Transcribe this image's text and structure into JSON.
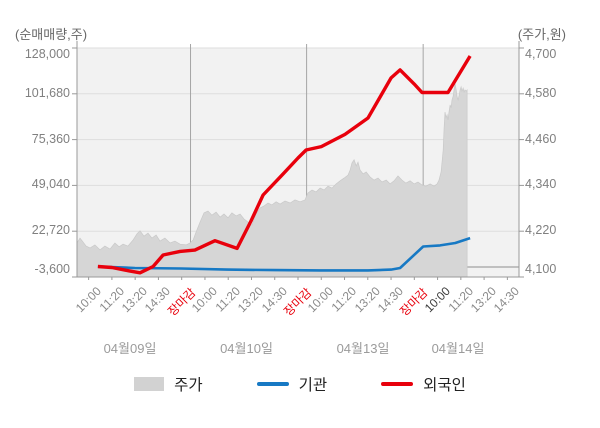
{
  "axes": {
    "left_title": "(순매매량,주)",
    "right_title": "(주가,원)",
    "left_ticks": [
      "128,000",
      "101,680",
      "75,360",
      "49,040",
      "22,720",
      "-3,600"
    ],
    "right_ticks": [
      "4,700",
      "4,580",
      "4,460",
      "4,340",
      "4,220",
      "4,100"
    ]
  },
  "x_axis": {
    "time_labels": [
      {
        "text": "10:00",
        "style": "normal"
      },
      {
        "text": "11:20",
        "style": "normal"
      },
      {
        "text": "13:20",
        "style": "normal"
      },
      {
        "text": "14:30",
        "style": "normal"
      },
      {
        "text": "장마감",
        "style": "close"
      },
      {
        "text": "10:00",
        "style": "normal"
      },
      {
        "text": "11:20",
        "style": "normal"
      },
      {
        "text": "13:20",
        "style": "normal"
      },
      {
        "text": "14:30",
        "style": "normal"
      },
      {
        "text": "장마감",
        "style": "close"
      },
      {
        "text": "10:00",
        "style": "normal"
      },
      {
        "text": "11:20",
        "style": "normal"
      },
      {
        "text": "13:20",
        "style": "normal"
      },
      {
        "text": "14:30",
        "style": "normal"
      },
      {
        "text": "장마감",
        "style": "close"
      },
      {
        "text": "10:00",
        "style": "current"
      },
      {
        "text": "11:20",
        "style": "normal"
      },
      {
        "text": "13:20",
        "style": "normal"
      },
      {
        "text": "14:30",
        "style": "normal"
      }
    ],
    "date_labels": [
      "04월09일",
      "04월10일",
      "04월13일",
      "04월14일"
    ]
  },
  "legend": [
    {
      "label": "주가",
      "type": "area",
      "color": "#d2d2d2"
    },
    {
      "label": "기관",
      "type": "line",
      "color": "#1779c4"
    },
    {
      "label": "외국인",
      "type": "line",
      "color": "#e8000c"
    }
  ],
  "chart_data": {
    "type": "area",
    "title": "",
    "x_unit": "session position in 40-min slots (0-19); ticks at i+0.5; days span [0-5],[5-10],[10-15],[15-19]",
    "left_axis": {
      "label": "순매매량(주)",
      "tick_values": [
        128000,
        101680,
        75360,
        49040,
        22720,
        -3600
      ],
      "zero_line": 0
    },
    "right_axis": {
      "label": "주가(원)",
      "min": 4100,
      "max": 4700,
      "tick_step": 120
    },
    "grid": true,
    "legend_position": "bottom",
    "day_boundaries_pos": [
      4.88,
      9.87,
      14.88
    ],
    "series": [
      {
        "name": "주가",
        "type": "area",
        "axis": "right",
        "unit": "원",
        "color": "#d6d6d6",
        "points": [
          [
            0,
            4189
          ],
          [
            0.13,
            4202
          ],
          [
            0.26,
            4192
          ],
          [
            0.39,
            4181
          ],
          [
            0.56,
            4176
          ],
          [
            0.77,
            4184
          ],
          [
            0.99,
            4171
          ],
          [
            1.2,
            4181
          ],
          [
            1.42,
            4173
          ],
          [
            1.63,
            4189
          ],
          [
            1.81,
            4179
          ],
          [
            1.98,
            4186
          ],
          [
            2.19,
            4181
          ],
          [
            2.41,
            4197
          ],
          [
            2.58,
            4213
          ],
          [
            2.71,
            4221
          ],
          [
            2.88,
            4207
          ],
          [
            3.05,
            4215
          ],
          [
            3.22,
            4202
          ],
          [
            3.4,
            4210
          ],
          [
            3.57,
            4194
          ],
          [
            3.78,
            4202
          ],
          [
            4,
            4189
          ],
          [
            4.21,
            4194
          ],
          [
            4.43,
            4186
          ],
          [
            4.69,
            4184
          ],
          [
            4.86,
            4189
          ],
          [
            4.99,
            4197
          ],
          [
            5.12,
            4218
          ],
          [
            5.29,
            4244
          ],
          [
            5.46,
            4268
          ],
          [
            5.63,
            4273
          ],
          [
            5.8,
            4262
          ],
          [
            5.98,
            4270
          ],
          [
            6.15,
            4257
          ],
          [
            6.32,
            4265
          ],
          [
            6.49,
            4255
          ],
          [
            6.66,
            4268
          ],
          [
            6.84,
            4260
          ],
          [
            7.01,
            4265
          ],
          [
            7.18,
            4252
          ],
          [
            7.35,
            4244
          ],
          [
            7.52,
            4236
          ],
          [
            7.7,
            4265
          ],
          [
            7.87,
            4281
          ],
          [
            8.04,
            4286
          ],
          [
            8.21,
            4294
          ],
          [
            8.38,
            4289
          ],
          [
            8.56,
            4297
          ],
          [
            8.73,
            4291
          ],
          [
            8.94,
            4299
          ],
          [
            9.16,
            4294
          ],
          [
            9.37,
            4302
          ],
          [
            9.59,
            4297
          ],
          [
            9.8,
            4302
          ],
          [
            9.93,
            4320
          ],
          [
            10.1,
            4328
          ],
          [
            10.28,
            4323
          ],
          [
            10.45,
            4333
          ],
          [
            10.62,
            4328
          ],
          [
            10.79,
            4338
          ],
          [
            10.96,
            4333
          ],
          [
            11.14,
            4344
          ],
          [
            11.31,
            4352
          ],
          [
            11.48,
            4359
          ],
          [
            11.65,
            4367
          ],
          [
            11.74,
            4380
          ],
          [
            11.82,
            4399
          ],
          [
            11.91,
            4407
          ],
          [
            12,
            4391
          ],
          [
            12.08,
            4401
          ],
          [
            12.17,
            4380
          ],
          [
            12.3,
            4370
          ],
          [
            12.43,
            4375
          ],
          [
            12.6,
            4362
          ],
          [
            12.77,
            4354
          ],
          [
            12.94,
            4359
          ],
          [
            13.11,
            4349
          ],
          [
            13.29,
            4354
          ],
          [
            13.46,
            4344
          ],
          [
            13.63,
            4352
          ],
          [
            13.8,
            4365
          ],
          [
            13.97,
            4354
          ],
          [
            14.14,
            4346
          ],
          [
            14.32,
            4352
          ],
          [
            14.49,
            4344
          ],
          [
            14.66,
            4349
          ],
          [
            14.83,
            4341
          ],
          [
            15,
            4338
          ],
          [
            15.18,
            4344
          ],
          [
            15.35,
            4338
          ],
          [
            15.48,
            4344
          ],
          [
            15.56,
            4354
          ],
          [
            15.65,
            4375
          ],
          [
            15.74,
            4433
          ],
          [
            15.78,
            4490
          ],
          [
            15.82,
            4532
          ],
          [
            15.86,
            4517
          ],
          [
            15.91,
            4525
          ],
          [
            15.95,
            4511
          ],
          [
            15.99,
            4532
          ],
          [
            16.04,
            4551
          ],
          [
            16.08,
            4543
          ],
          [
            16.12,
            4564
          ],
          [
            16.17,
            4574
          ],
          [
            16.25,
            4608
          ],
          [
            16.3,
            4590
          ],
          [
            16.34,
            4572
          ],
          [
            16.38,
            4564
          ],
          [
            16.43,
            4577
          ],
          [
            16.47,
            4590
          ],
          [
            16.51,
            4598
          ],
          [
            16.55,
            4587
          ],
          [
            16.6,
            4595
          ],
          [
            16.64,
            4585
          ],
          [
            16.68,
            4590
          ],
          [
            16.73,
            4587
          ],
          [
            16.77,
            4590
          ]
        ]
      },
      {
        "name": "기관",
        "type": "line",
        "axis": "left",
        "unit": "주",
        "color": "#1779c4",
        "points": [
          [
            0.9,
            300
          ],
          [
            2.49,
            -600
          ],
          [
            4.47,
            -900
          ],
          [
            6.45,
            -1500
          ],
          [
            8.51,
            -1800
          ],
          [
            10.45,
            -2000
          ],
          [
            12.51,
            -2000
          ],
          [
            13.5,
            -1500
          ],
          [
            13.89,
            -600
          ],
          [
            14.88,
            12000
          ],
          [
            15.61,
            12600
          ],
          [
            16.26,
            14000
          ],
          [
            16.9,
            16900
          ]
        ]
      },
      {
        "name": "외국인",
        "type": "line",
        "axis": "left",
        "unit": "주",
        "color": "#e8000c",
        "points": [
          [
            0.9,
            300
          ],
          [
            1.5,
            -300
          ],
          [
            2.06,
            -1800
          ],
          [
            2.71,
            -3400
          ],
          [
            3.27,
            300
          ],
          [
            3.7,
            7000
          ],
          [
            4.43,
            9100
          ],
          [
            5.07,
            9900
          ],
          [
            5.93,
            15400
          ],
          [
            6.88,
            10900
          ],
          [
            7.48,
            26900
          ],
          [
            8,
            42100
          ],
          [
            8.86,
            54400
          ],
          [
            9.5,
            63700
          ],
          [
            9.85,
            68400
          ],
          [
            10.5,
            70400
          ],
          [
            11.52,
            77500
          ],
          [
            12.51,
            87100
          ],
          [
            13.5,
            110500
          ],
          [
            13.89,
            115200
          ],
          [
            14.49,
            107000
          ],
          [
            14.83,
            102000
          ],
          [
            15.95,
            102000
          ],
          [
            16.9,
            123300
          ]
        ]
      }
    ]
  }
}
